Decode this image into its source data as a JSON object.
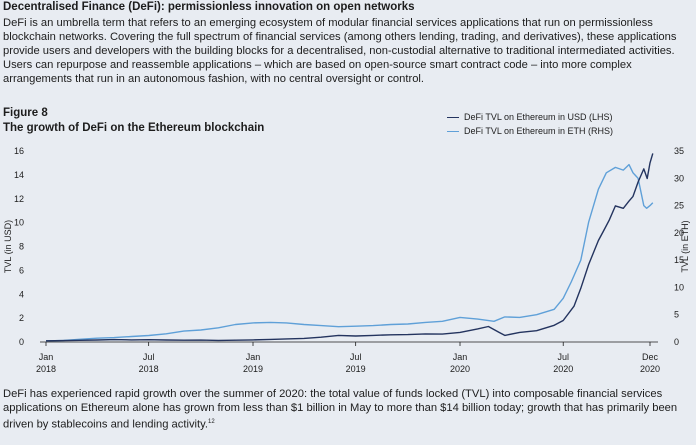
{
  "box": {
    "heading": "Decentralised Finance (DeFi): permissionless innovation on open networks",
    "intro": "DeFi is an umbrella term that refers to an emerging ecosystem of modular financial services applications that run on permissionless blockchain networks. Covering the full spectrum of financial services (among others lending, trading, and derivatives), these applications provide users and developers with the building blocks for a decentralised, non-custodial alternative to traditional intermediated activities. Users can repurpose and reassemble applications – which are based on open-source smart contract code – into more complex arrangements that run in an autonomous fashion, with no central oversight or control.",
    "footer": "DeFi has experienced rapid growth over the summer of 2020: the total value of funds locked (TVL) into composable financial services applications on Ethereum alone has grown from less than $1 billion in May to more than $14 billion today; growth that has primarily been driven by stablecoins and lending activity.",
    "footnote_ref": "12"
  },
  "colors": {
    "usd": "#24345f",
    "eth": "#5fa0d8",
    "axis": "#1d1d1d",
    "background": "#e8ecf2"
  },
  "chart_data": {
    "type": "line",
    "figure_number": "Figure 8",
    "title": "The growth of DeFi on the Ethereum blockchain",
    "ylabel_left": "TVL (in USD)",
    "ylabel_right": "TVL (in ETH)",
    "ylim_left": [
      0,
      16
    ],
    "ylim_right": [
      0,
      35
    ],
    "yticks_left": [
      0,
      2,
      4,
      6,
      8,
      10,
      12,
      14,
      16
    ],
    "yticks_right": [
      0,
      5,
      10,
      15,
      20,
      25,
      30,
      35
    ],
    "x_domain": [
      "2018-01",
      "2020-12"
    ],
    "xticks": [
      {
        "month": "Jan",
        "year": "2018",
        "x": "2018-01"
      },
      {
        "month": "Jul",
        "year": "2018",
        "x": "2018-07"
      },
      {
        "month": "Jan",
        "year": "2019",
        "x": "2019-01"
      },
      {
        "month": "Jul",
        "year": "2019",
        "x": "2019-07"
      },
      {
        "month": "Jan",
        "year": "2020",
        "x": "2020-01"
      },
      {
        "month": "Jul",
        "year": "2020",
        "x": "2020-07"
      },
      {
        "month": "Dec",
        "year": "2020",
        "x": "2020-12"
      }
    ],
    "legend_position": "top-right",
    "series": [
      {
        "name": "DeFi TVL on Ethereum in USD (LHS)",
        "axis": "left",
        "color": "#24345f",
        "points": [
          [
            "2018-01-01",
            0.1
          ],
          [
            "2018-02-01",
            0.12
          ],
          [
            "2018-03-01",
            0.14
          ],
          [
            "2018-04-01",
            0.17
          ],
          [
            "2018-05-01",
            0.2
          ],
          [
            "2018-06-01",
            0.18
          ],
          [
            "2018-07-01",
            0.19
          ],
          [
            "2018-08-01",
            0.17
          ],
          [
            "2018-09-01",
            0.15
          ],
          [
            "2018-10-01",
            0.16
          ],
          [
            "2018-11-01",
            0.13
          ],
          [
            "2018-12-01",
            0.15
          ],
          [
            "2019-01-01",
            0.18
          ],
          [
            "2019-02-01",
            0.22
          ],
          [
            "2019-03-01",
            0.26
          ],
          [
            "2019-04-01",
            0.3
          ],
          [
            "2019-05-01",
            0.4
          ],
          [
            "2019-06-01",
            0.55
          ],
          [
            "2019-07-01",
            0.5
          ],
          [
            "2019-08-01",
            0.55
          ],
          [
            "2019-09-01",
            0.6
          ],
          [
            "2019-10-01",
            0.62
          ],
          [
            "2019-11-01",
            0.68
          ],
          [
            "2019-12-01",
            0.66
          ],
          [
            "2020-01-01",
            0.8
          ],
          [
            "2020-02-01",
            1.1
          ],
          [
            "2020-02-20",
            1.3
          ],
          [
            "2020-03-10",
            0.8
          ],
          [
            "2020-03-20",
            0.55
          ],
          [
            "2020-04-15",
            0.8
          ],
          [
            "2020-05-15",
            0.95
          ],
          [
            "2020-06-15",
            1.4
          ],
          [
            "2020-07-01",
            1.8
          ],
          [
            "2020-07-20",
            3.0
          ],
          [
            "2020-08-01",
            4.5
          ],
          [
            "2020-08-15",
            6.5
          ],
          [
            "2020-09-01",
            8.5
          ],
          [
            "2020-09-10",
            9.3
          ],
          [
            "2020-09-20",
            10.2
          ],
          [
            "2020-10-01",
            11.4
          ],
          [
            "2020-10-15",
            11.2
          ],
          [
            "2020-10-25",
            11.8
          ],
          [
            "2020-11-01",
            12.2
          ],
          [
            "2020-11-10",
            13.4
          ],
          [
            "2020-11-20",
            14.5
          ],
          [
            "2020-11-26",
            13.7
          ],
          [
            "2020-12-01",
            15.0
          ],
          [
            "2020-12-06",
            15.8
          ]
        ]
      },
      {
        "name": "DeFi TVL on Ethereum in ETH (RHS)",
        "axis": "right",
        "color": "#5fa0d8",
        "points": [
          [
            "2018-01-01",
            0.2
          ],
          [
            "2018-02-01",
            0.3
          ],
          [
            "2018-03-01",
            0.5
          ],
          [
            "2018-04-01",
            0.7
          ],
          [
            "2018-05-01",
            0.8
          ],
          [
            "2018-06-01",
            1.0
          ],
          [
            "2018-07-01",
            1.2
          ],
          [
            "2018-08-01",
            1.5
          ],
          [
            "2018-09-01",
            2.0
          ],
          [
            "2018-10-01",
            2.2
          ],
          [
            "2018-11-01",
            2.6
          ],
          [
            "2018-12-01",
            3.2
          ],
          [
            "2019-01-01",
            3.5
          ],
          [
            "2019-02-01",
            3.6
          ],
          [
            "2019-03-01",
            3.5
          ],
          [
            "2019-04-01",
            3.2
          ],
          [
            "2019-05-01",
            3.0
          ],
          [
            "2019-06-01",
            2.8
          ],
          [
            "2019-07-01",
            2.9
          ],
          [
            "2019-08-01",
            3.0
          ],
          [
            "2019-09-01",
            3.2
          ],
          [
            "2019-10-01",
            3.3
          ],
          [
            "2019-11-01",
            3.6
          ],
          [
            "2019-12-01",
            3.8
          ],
          [
            "2020-01-01",
            4.5
          ],
          [
            "2020-02-01",
            4.2
          ],
          [
            "2020-03-01",
            3.8
          ],
          [
            "2020-03-20",
            4.6
          ],
          [
            "2020-04-15",
            4.5
          ],
          [
            "2020-05-15",
            5.0
          ],
          [
            "2020-06-15",
            6.0
          ],
          [
            "2020-07-01",
            8.0
          ],
          [
            "2020-07-15",
            11.0
          ],
          [
            "2020-08-01",
            15.0
          ],
          [
            "2020-08-15",
            22.0
          ],
          [
            "2020-09-01",
            28.0
          ],
          [
            "2020-09-15",
            31.0
          ],
          [
            "2020-10-01",
            32.0
          ],
          [
            "2020-10-15",
            31.5
          ],
          [
            "2020-10-25",
            32.5
          ],
          [
            "2020-11-01",
            31.0
          ],
          [
            "2020-11-10",
            30.0
          ],
          [
            "2020-11-20",
            25.0
          ],
          [
            "2020-11-25",
            24.5
          ],
          [
            "2020-12-01",
            25.0
          ],
          [
            "2020-12-06",
            25.5
          ]
        ]
      }
    ]
  }
}
